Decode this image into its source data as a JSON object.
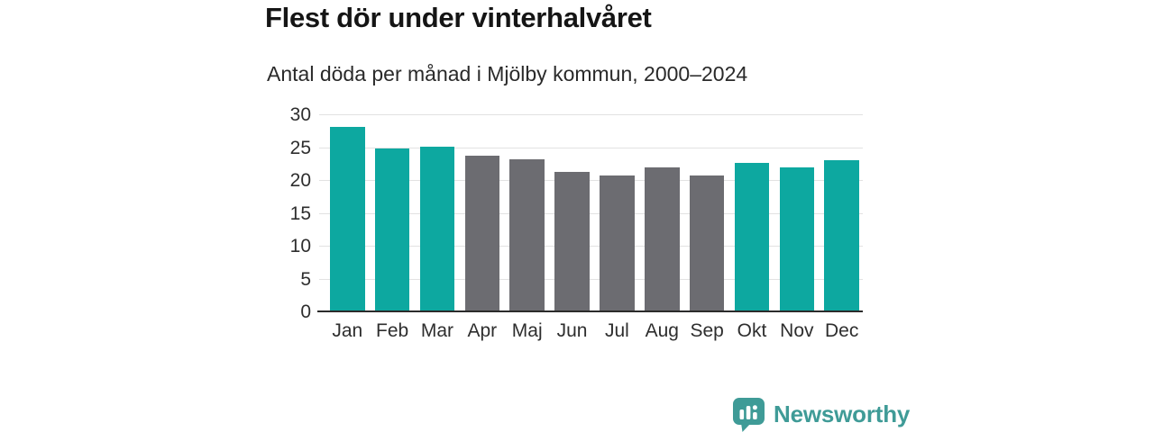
{
  "header": {
    "title": "Flest dör under vinterhalvåret",
    "subtitle": "Antal döda per månad i Mjölby kommun, 2000–2024"
  },
  "chart_data": {
    "type": "bar",
    "title": "Flest dör under vinterhalvåret",
    "subtitle": "Antal döda per månad i Mjölby kommun, 2000–2024",
    "categories": [
      "Jan",
      "Feb",
      "Mar",
      "Apr",
      "Maj",
      "Jun",
      "Jul",
      "Aug",
      "Sep",
      "Okt",
      "Nov",
      "Dec"
    ],
    "values": [
      28.2,
      25.0,
      25.2,
      23.9,
      23.3,
      21.4,
      20.8,
      22.0,
      20.8,
      22.7,
      22.1,
      23.2
    ],
    "bar_color_keys": [
      "highlight",
      "highlight",
      "highlight",
      "muted",
      "muted",
      "muted",
      "muted",
      "muted",
      "muted",
      "highlight",
      "highlight",
      "highlight"
    ],
    "xlabel": "",
    "ylabel": "",
    "ylim": [
      0,
      30
    ],
    "yticks": [
      0,
      5,
      10,
      15,
      20,
      25,
      30
    ],
    "grid": true,
    "legend": "none",
    "colors": {
      "highlight": "#0da8a0",
      "muted": "#6c6c71",
      "gridline": "#e2e2e2",
      "axis": "#2b2b2b"
    }
  },
  "branding": {
    "logo_text": "Newsworthy",
    "logo_color": "#3f9b97",
    "logo_icon": "bar-chart-speech-bubble-icon"
  }
}
